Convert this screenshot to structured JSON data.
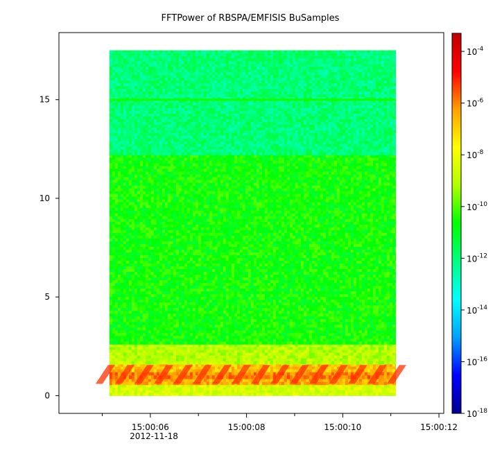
{
  "chart_data": {
    "type": "heatmap",
    "title": "FFTPower of RBSPA/EMFISIS  BuSamples",
    "xlabel": "",
    "ylabel": "",
    "x_date_label": "2012-11-18",
    "x_ticks": [
      "15:00:06",
      "15:00:08",
      "15:00:10",
      "15:00:12"
    ],
    "x_tick_values_s": [
      6,
      8,
      10,
      12
    ],
    "x_minor_ticks_s": [
      5,
      7,
      9,
      11
    ],
    "xlim_s": [
      4.1,
      12.1
    ],
    "y_ticks": [
      "0",
      "5",
      "10",
      "15"
    ],
    "y_tick_values": [
      0,
      5,
      10,
      15
    ],
    "ylim": [
      -0.9,
      18.4
    ],
    "data_extent": {
      "x_s": [
        5.15,
        11.1
      ],
      "y": [
        0,
        17.5
      ]
    },
    "bands": [
      {
        "y": [
          0,
          0.55
        ],
        "log_power": -8.5
      },
      {
        "y": [
          0.55,
          0.85
        ],
        "log_power": -6.5
      },
      {
        "y": [
          0.85,
          1.2
        ],
        "log_power": -6.0
      },
      {
        "y": [
          1.2,
          1.6
        ],
        "log_power": -6.8
      },
      {
        "y": [
          1.6,
          2.6
        ],
        "log_power": -9.0
      },
      {
        "y": [
          2.6,
          12.2
        ],
        "log_power": -10.6
      },
      {
        "y": [
          12.2,
          17.5
        ],
        "log_power": -12.0
      }
    ],
    "line_feature": {
      "y": 15.0,
      "log_power": -10.5
    },
    "colorbar": {
      "scale": "log",
      "range": [
        -18,
        -3.3
      ],
      "ticks": [
        {
          "base": "10",
          "exp": "-4",
          "value": -4
        },
        {
          "base": "10",
          "exp": "-6",
          "value": -6
        },
        {
          "base": "10",
          "exp": "-8",
          "value": -8
        },
        {
          "base": "10",
          "exp": "-10",
          "value": -10
        },
        {
          "base": "10",
          "exp": "-12",
          "value": -12
        },
        {
          "base": "10",
          "exp": "-14",
          "value": -14
        },
        {
          "base": "10",
          "exp": "-16",
          "value": -16
        },
        {
          "base": "10",
          "exp": "-18",
          "value": -18
        }
      ],
      "colors": [
        "#000090",
        "#0000ff",
        "#00a0ff",
        "#00ffff",
        "#00ff80",
        "#00ff00",
        "#b0ff00",
        "#ffff00",
        "#ffa000",
        "#ff0000",
        "#c00000"
      ]
    }
  }
}
